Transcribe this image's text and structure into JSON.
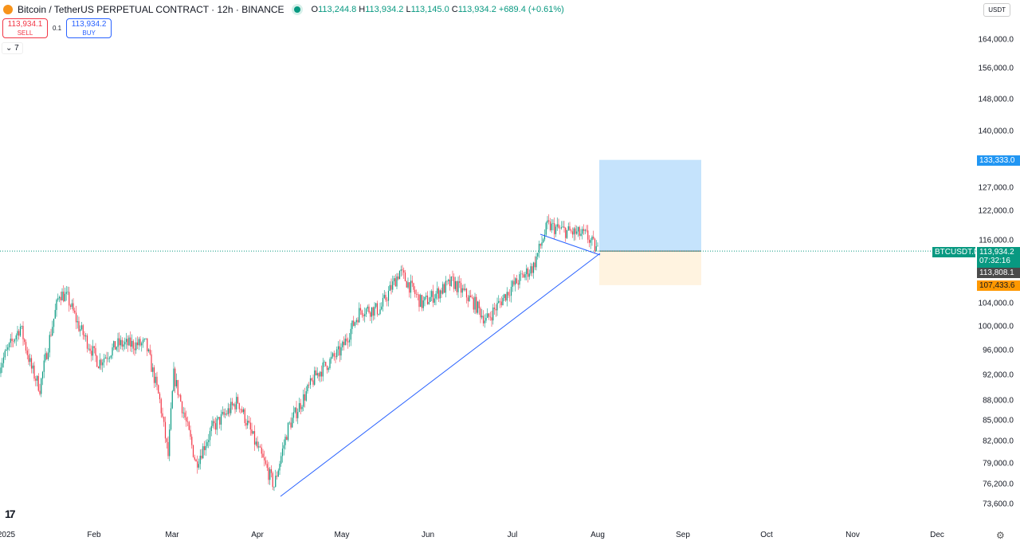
{
  "header": {
    "title": "Bitcoin / TetherUS PERPETUAL CONTRACT · 12h · BINANCE",
    "o": "113,244.8",
    "h": "113,934.2",
    "l": "113,145.0",
    "c": "113,934.2",
    "change": "+689.4 (+0.61%)"
  },
  "trade": {
    "sell_price": "113,934.1",
    "sell_label": "SELL",
    "qty": "0.1",
    "buy_price": "113,934.2",
    "buy_label": "BUY"
  },
  "indicators_toggle": "7",
  "currency": "USDT",
  "price_ticks": [
    "164,000.0",
    "156,000.0",
    "148,000.0",
    "140,000.0",
    "127,000.0",
    "122,000.0",
    "116,000.0",
    "104,000.0",
    "100,000.0",
    "96,000.0",
    "92,000.0",
    "88,000.0",
    "85,000.0",
    "82,000.0",
    "79,000.0",
    "76,200.0",
    "73,600.0"
  ],
  "price_tick_values": [
    164000,
    156000,
    148000,
    140000,
    127000,
    122000,
    116000,
    104000,
    100000,
    96000,
    92000,
    88000,
    85000,
    82000,
    79000,
    76200,
    73600
  ],
  "labels": {
    "target": "133,333.0",
    "symbol": "BTCUSDT.P",
    "last": "113,934.2",
    "countdown": "07:32:16",
    "crosshair": "113,808.1",
    "stop": "107,433.6"
  },
  "months": [
    "2025",
    "Feb",
    "Mar",
    "Apr",
    "May",
    "Jun",
    "Jul",
    "Aug",
    "Sep",
    "Oct",
    "Nov",
    "Dec"
  ],
  "colors": {
    "up": "#089981",
    "down": "#f23645",
    "target": "#2196f3",
    "stop": "#ff9800"
  },
  "price_path": [
    [
      -3,
      93000
    ],
    [
      5,
      100000
    ],
    [
      9,
      93000
    ],
    [
      12,
      90000
    ],
    [
      19,
      106000
    ],
    [
      22,
      105000
    ],
    [
      26,
      100000
    ],
    [
      33,
      94000
    ],
    [
      40,
      97000
    ],
    [
      50,
      97000
    ],
    [
      55,
      88000
    ],
    [
      58,
      80000
    ],
    [
      60,
      92000
    ],
    [
      68,
      79000
    ],
    [
      74,
      84000
    ],
    [
      83,
      88000
    ],
    [
      89,
      82000
    ],
    [
      96,
      76000
    ],
    [
      101,
      84000
    ],
    [
      111,
      92000
    ],
    [
      120,
      96000
    ],
    [
      127,
      103000
    ],
    [
      134,
      103000
    ],
    [
      141,
      110000
    ],
    [
      149,
      104000
    ],
    [
      160,
      108000
    ],
    [
      168,
      104000
    ],
    [
      172,
      101000
    ],
    [
      181,
      107000
    ],
    [
      189,
      111000
    ],
    [
      194,
      119000
    ],
    [
      200,
      118000
    ],
    [
      208,
      117000
    ],
    [
      212,
      113934
    ]
  ]
}
